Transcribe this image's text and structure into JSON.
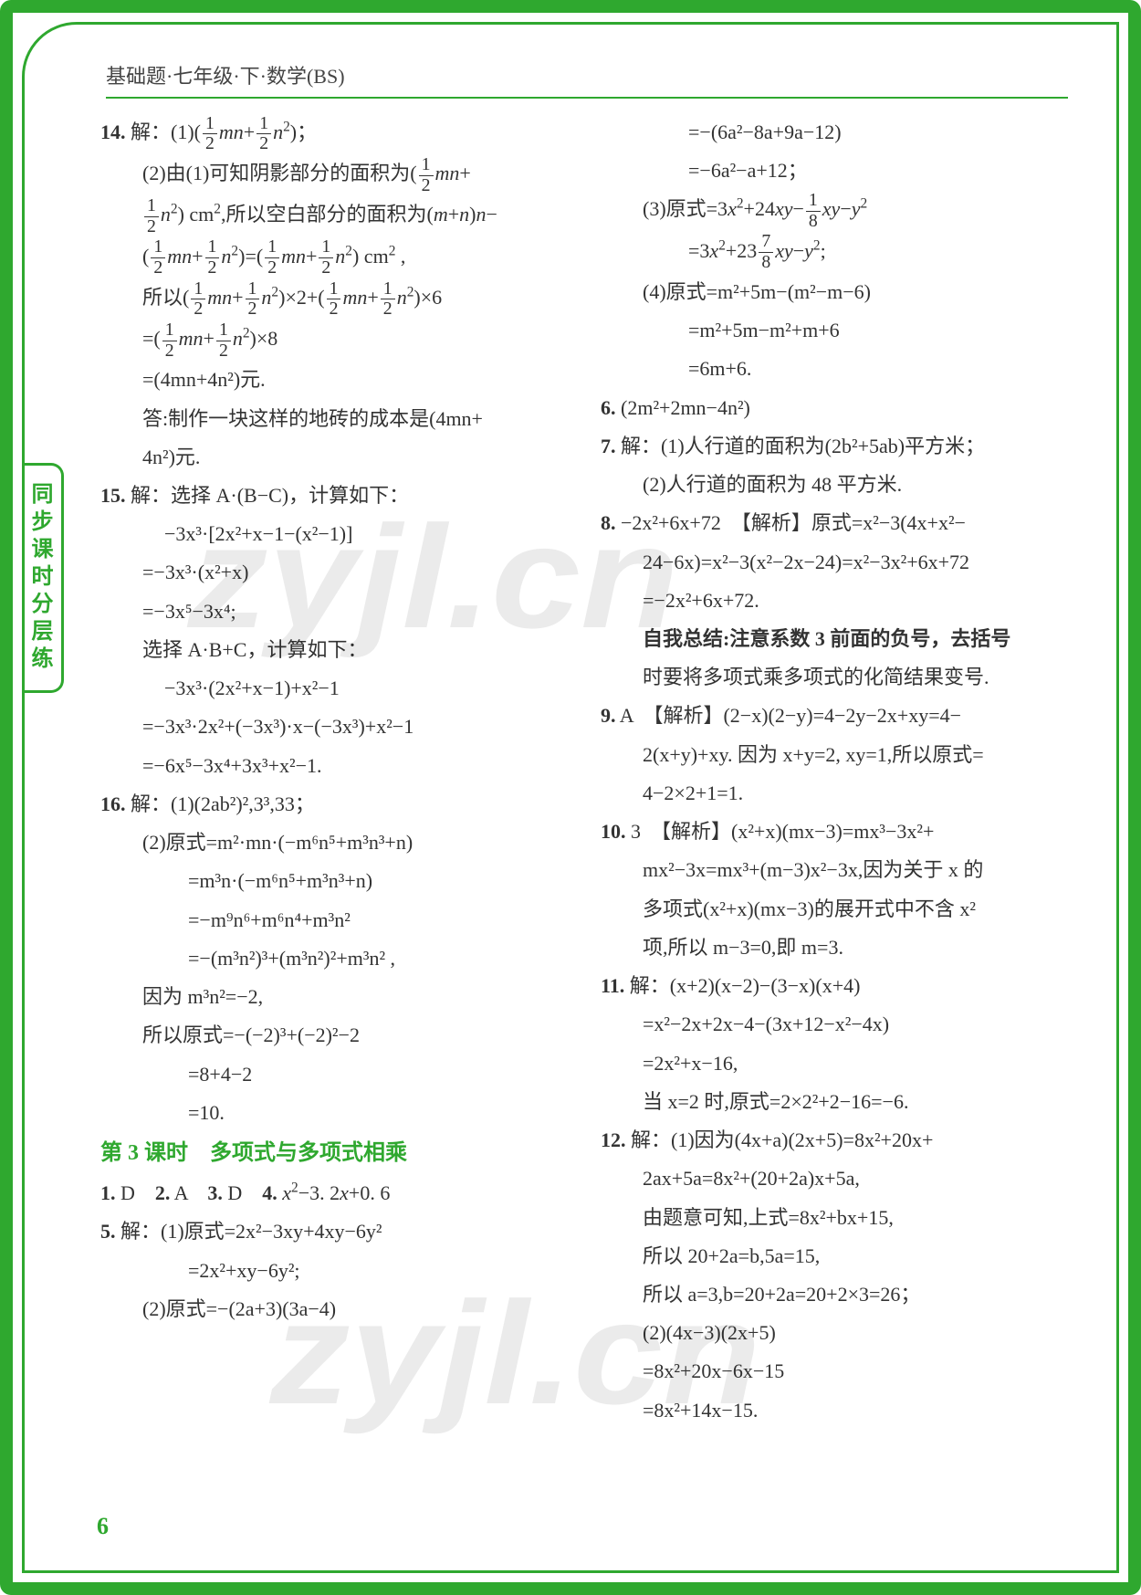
{
  "page_number": "6",
  "header": "基础题·七年级·下·数学(BS)",
  "side_tab": "同步课时分层练",
  "watermark": "zyjl.cn",
  "section_title": "第 3 课时　多项式与多项式相乘",
  "left": {
    "l14": "14.",
    "l14_1": "解：(1)( ½mn+½n² )；",
    "l14_2a": "(2)由(1)可知阴影部分的面积为( ½mn+",
    "l14_2b": "½n² ) cm²,所以空白部分的面积为(m+n)n−",
    "l14_2c": "( ½mn+½n² )=( ½mn+½n² ) cm² ,",
    "l14_2d": "所以( ½mn+½n² )×2+( ½mn+½n² )×6",
    "l14_2e": "=( ½mn+½n² )×8",
    "l14_2f": "=(4mn+4n²)元.",
    "l14_2g": "答:制作一块这样的地砖的成本是(4mn+",
    "l14_2h": "4n²)元.",
    "l15": "15.",
    "l15_1": "解：选择 A·(B−C)，计算如下：",
    "l15_2": "−3x³·[2x²+x−1−(x²−1)]",
    "l15_3": "=−3x³·(x²+x)",
    "l15_4": "=−3x⁵−3x⁴;",
    "l15_5": "选择 A·B+C，计算如下：",
    "l15_6": "−3x³·(2x²+x−1)+x²−1",
    "l15_7": "=−3x³·2x²+(−3x³)·x−(−3x³)+x²−1",
    "l15_8": "=−6x⁵−3x⁴+3x³+x²−1.",
    "l16": "16.",
    "l16_1": "解：(1)(2ab²)²,3³,33；",
    "l16_2": "(2)原式=m²·mn·(−m⁶n⁵+m³n³+n)",
    "l16_3": "=m³n·(−m⁶n⁵+m³n³+n)",
    "l16_4": "=−m⁹n⁶+m⁶n⁴+m³n²",
    "l16_5": "=−(m³n²)³+(m³n²)²+m³n² ,",
    "l16_6": "因为 m³n²=−2,",
    "l16_7": "所以原式=−(−2)³+(−2)²−2",
    "l16_8": "=8+4−2",
    "l16_9": "=10.",
    "b1": "1. D　2. A　3. D　4. x²−3. 2x+0. 6",
    "b5": "5.",
    "b5_1": "解：(1)原式=2x²−3xy+4xy−6y²",
    "b5_2": "=2x²+xy−6y²;",
    "b5_3": "(2)原式=−(2a+3)(3a−4)"
  },
  "right": {
    "r_a": "=−(6a²−8a+9a−12)",
    "r_b": "=−6a²−a+12；",
    "r_c": "(3)原式=3x²+24xy−⅛xy−y²",
    "r_d": "=3x²+23 ⅞xy−y²;",
    "r_e": "(4)原式=m²+5m−(m²−m−6)",
    "r_f": "=m²+5m−m²+m+6",
    "r_g": "=6m+6.",
    "r6": "6.",
    "r6_1": "(2m²+2mn−4n²)",
    "r7": "7.",
    "r7_1": "解：(1)人行道的面积为(2b²+5ab)平方米；",
    "r7_2": "(2)人行道的面积为 48 平方米.",
    "r8": "8.",
    "r8_1": "−2x²+6x+72　【解析】原式=x²−3(4x+x²−",
    "r8_2": "24−6x)=x²−3(x²−2x−24)=x²−3x²+6x+72",
    "r8_3": "=−2x²+6x+72.",
    "r8_sum1": "自我总结:注意系数 3 前面的负号，去括号",
    "r8_sum2": "时要将多项式乘多项式的化简结果变号.",
    "r9": "9.",
    "r9_1": "A　【解析】(2−x)(2−y)=4−2y−2x+xy=4−",
    "r9_2": "2(x+y)+xy. 因为 x+y=2, xy=1,所以原式=",
    "r9_3": "4−2×2+1=1.",
    "r10": "10.",
    "r10_1": "3　【解析】(x²+x)(mx−3)=mx³−3x²+",
    "r10_2": "mx²−3x=mx³+(m−3)x²−3x,因为关于 x 的",
    "r10_3": "多项式(x²+x)(mx−3)的展开式中不含 x²",
    "r10_4": "项,所以 m−3=0,即 m=3.",
    "r11": "11.",
    "r11_1": "解：(x+2)(x−2)−(3−x)(x+4)",
    "r11_2": "=x²−2x+2x−4−(3x+12−x²−4x)",
    "r11_3": "=2x²+x−16,",
    "r11_4": "当 x=2 时,原式=2×2²+2−16=−6.",
    "r12": "12.",
    "r12_1": "解：(1)因为(4x+a)(2x+5)=8x²+20x+",
    "r12_2": "2ax+5a=8x²+(20+2a)x+5a,",
    "r12_3": "由题意可知,上式=8x²+bx+15,",
    "r12_4": "所以 20+2a=b,5a=15,",
    "r12_5": "所以 a=3,b=20+2a=20+2×3=26；",
    "r12_6": "(2)(4x−3)(2x+5)",
    "r12_7": "=8x²+20x−6x−15",
    "r12_8": "=8x²+14x−15."
  },
  "colors": {
    "accent": "#2fa82f",
    "text": "#333333",
    "background": "#ffffff"
  }
}
